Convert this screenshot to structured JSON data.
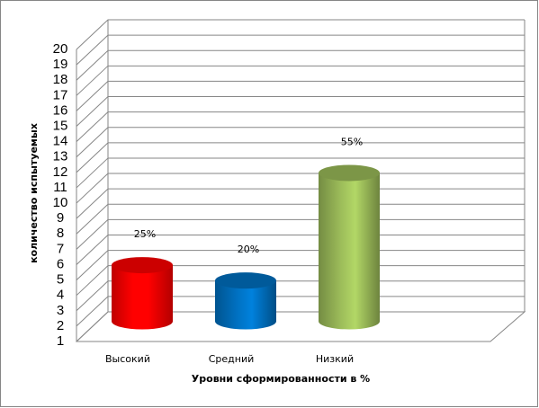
{
  "chart_data": {
    "type": "cylinder-bar",
    "y_axis_label": "количество испытуемых",
    "x_axis_label": "Уровни сформированности  в %",
    "categories": [
      "Высокий",
      "Средний",
      "Низкий"
    ],
    "values": [
      5,
      4,
      11
    ],
    "annotations": [
      "25%",
      "20%",
      "55%"
    ],
    "colors": [
      "#ff0000",
      "#0070c0",
      "#9bbb59"
    ],
    "ylim": [
      1,
      20
    ],
    "yticks": [
      1,
      2,
      3,
      4,
      5,
      6,
      7,
      8,
      9,
      10,
      11,
      12,
      13,
      14,
      15,
      16,
      17,
      18,
      19,
      20
    ],
    "grid": true
  }
}
